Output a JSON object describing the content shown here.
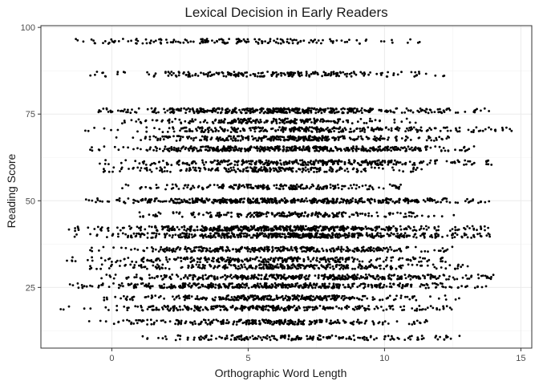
{
  "chart_data": {
    "type": "scatter",
    "title": "Lexical Decision in Early Readers",
    "xlabel": "Orthographic Word Length",
    "ylabel": "Reading Score",
    "xlim": [
      -2.6,
      15.4
    ],
    "ylim": [
      7.5,
      100.5
    ],
    "x_ticks": [
      0,
      5,
      10,
      15
    ],
    "y_ticks": [
      25,
      50,
      75,
      100
    ],
    "x_tick_labels": [
      "0",
      "5",
      "10",
      "15"
    ],
    "y_tick_labels": [
      "25",
      "50",
      "75",
      "100"
    ],
    "grid": true,
    "theme": "bw",
    "point_color": "#000000",
    "jitter": true,
    "bands": [
      {
        "y": 96,
        "x": [
          -2,
          11.5
        ],
        "n": 170
      },
      {
        "y": 86.5,
        "x": [
          -1,
          12.2
        ],
        "n": 220
      },
      {
        "y": 76,
        "x": [
          -0.7,
          13.9
        ],
        "n": 420
      },
      {
        "y": 73,
        "x": [
          0.2,
          11.3
        ],
        "n": 210
      },
      {
        "y": 70.5,
        "x": [
          -1,
          14.7
        ],
        "n": 300
      },
      {
        "y": 68,
        "x": [
          0,
          12.4
        ],
        "n": 300
      },
      {
        "y": 65,
        "x": [
          -0.8,
          13.3
        ],
        "n": 420
      },
      {
        "y": 61,
        "x": [
          -0.6,
          14.5
        ],
        "n": 330
      },
      {
        "y": 59,
        "x": [
          -0.3,
          11.4
        ],
        "n": 230
      },
      {
        "y": 54,
        "x": [
          0.3,
          10.6
        ],
        "n": 210
      },
      {
        "y": 50,
        "x": [
          -1.2,
          14.1
        ],
        "n": 460
      },
      {
        "y": 46,
        "x": [
          0.6,
          12.6
        ],
        "n": 230
      },
      {
        "y": 42,
        "x": [
          -1.6,
          13.9
        ],
        "n": 460
      },
      {
        "y": 40,
        "x": [
          -1.5,
          13.9
        ],
        "n": 480
      },
      {
        "y": 36,
        "x": [
          -0.8,
          12.5
        ],
        "n": 320
      },
      {
        "y": 33,
        "x": [
          -1.8,
          12.8
        ],
        "n": 300
      },
      {
        "y": 31,
        "x": [
          -0.8,
          13.1
        ],
        "n": 300
      },
      {
        "y": 28,
        "x": [
          -0.5,
          14.0
        ],
        "n": 380
      },
      {
        "y": 25.5,
        "x": [
          -1.8,
          14.0
        ],
        "n": 420
      },
      {
        "y": 22,
        "x": [
          -0.5,
          12.8
        ],
        "n": 300
      },
      {
        "y": 19,
        "x": [
          -1.9,
          12.5
        ],
        "n": 300
      },
      {
        "y": 15,
        "x": [
          -1.0,
          11.6
        ],
        "n": 260
      },
      {
        "y": 10.5,
        "x": [
          -0.2,
          13.1
        ],
        "n": 200
      }
    ]
  }
}
